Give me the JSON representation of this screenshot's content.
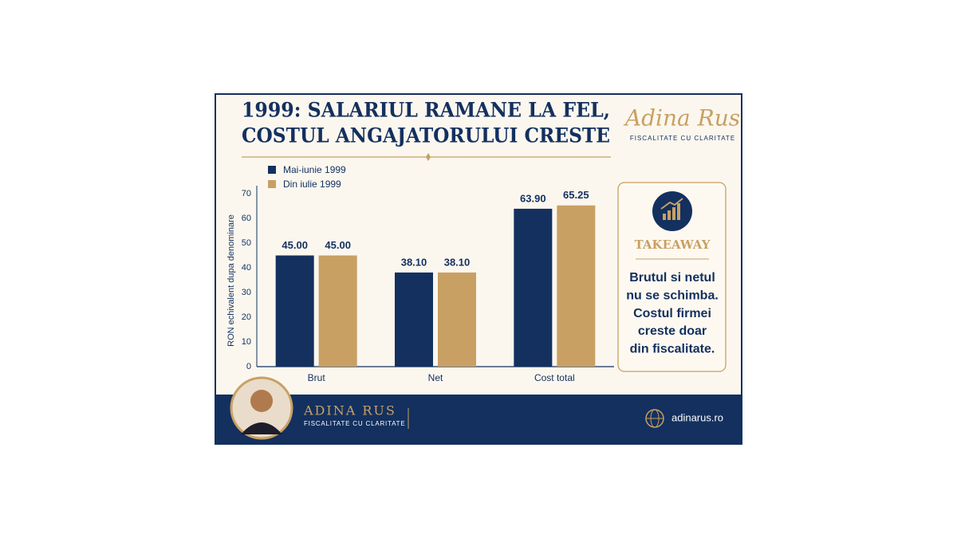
{
  "chart_data": {
    "type": "bar",
    "title": [
      "1999: SALARIUL RAMANE LA FEL,",
      "COSTUL ANGAJATORULUI CRESTE"
    ],
    "y_label": "RON echivalent dupa denominare",
    "categories": [
      "Brut",
      "Net",
      "Cost total"
    ],
    "series": [
      {
        "name": "Mai-iunie 1999",
        "color": "#13305f",
        "values": [
          45,
          38.1,
          63.9
        ],
        "value_labels": [
          "45.00",
          "38.10",
          "63.90"
        ]
      },
      {
        "name": "Din iulie 1999",
        "color": "#c9a063",
        "values": [
          45,
          38.1,
          65.25
        ],
        "value_labels": [
          "45.00",
          "38.10",
          "65.25"
        ]
      }
    ],
    "ylim": [
      0,
      70
    ],
    "yticks": [
      0,
      10,
      20,
      30,
      40,
      50,
      60,
      70
    ],
    "grid": false
  },
  "brand": {
    "name": "Adina Rus",
    "tagline": "FISCALITATE CU CLARITATE"
  },
  "takeaway": {
    "title": "TAKEAWAY",
    "lines": [
      "Brutul si netul",
      "nu se schimba.",
      "Costul firmei",
      "creste doar",
      "din fiscalitate."
    ]
  },
  "footer": {
    "name": "ADINA RUS",
    "tagline": "FISCALITATE CU CLARITATE",
    "website": "adinarus.ro"
  }
}
